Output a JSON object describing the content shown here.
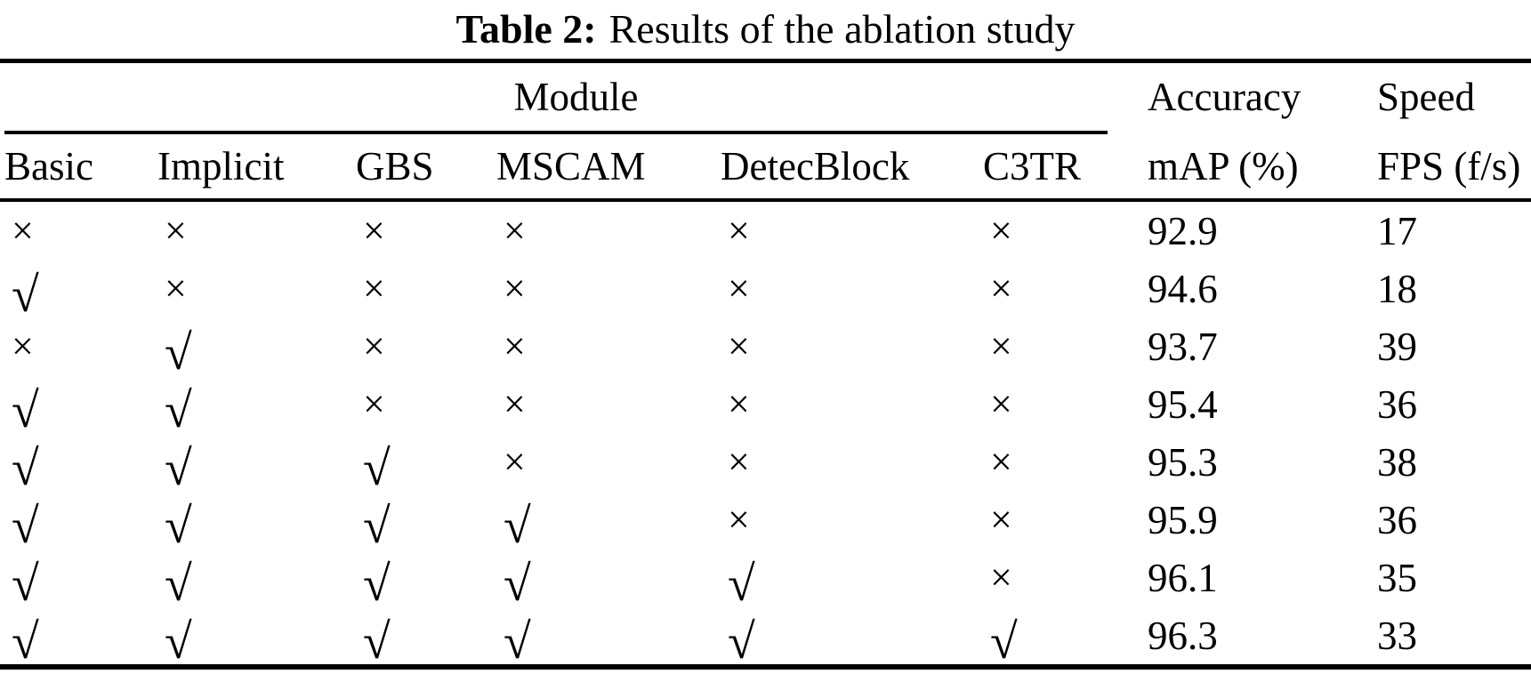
{
  "title": {
    "label": "Table 2:",
    "caption": "Results of the ablation study"
  },
  "table": {
    "group_header": {
      "module": "Module",
      "accuracy": "Accuracy",
      "speed": "Speed"
    },
    "columns": [
      "Basic",
      "Implicit",
      "GBS",
      "MSCAM",
      "DetecBlock",
      "C3TR",
      "mAP (%)",
      "FPS (f/s)"
    ],
    "symbols": {
      "check": "√",
      "cross": "×"
    },
    "rows": [
      {
        "modules": [
          false,
          false,
          false,
          false,
          false,
          false
        ],
        "map": "92.9",
        "fps": "17"
      },
      {
        "modules": [
          true,
          false,
          false,
          false,
          false,
          false
        ],
        "map": "94.6",
        "fps": "18"
      },
      {
        "modules": [
          false,
          true,
          false,
          false,
          false,
          false
        ],
        "map": "93.7",
        "fps": "39"
      },
      {
        "modules": [
          true,
          true,
          false,
          false,
          false,
          false
        ],
        "map": "95.4",
        "fps": "36"
      },
      {
        "modules": [
          true,
          true,
          true,
          false,
          false,
          false
        ],
        "map": "95.3",
        "fps": "38"
      },
      {
        "modules": [
          true,
          true,
          true,
          true,
          false,
          false
        ],
        "map": "95.9",
        "fps": "36"
      },
      {
        "modules": [
          true,
          true,
          true,
          true,
          true,
          false
        ],
        "map": "96.1",
        "fps": "35"
      },
      {
        "modules": [
          true,
          true,
          true,
          true,
          true,
          true
        ],
        "map": "96.3",
        "fps": "33"
      }
    ],
    "text_color": "#000000",
    "background_color": "#ffffff"
  }
}
